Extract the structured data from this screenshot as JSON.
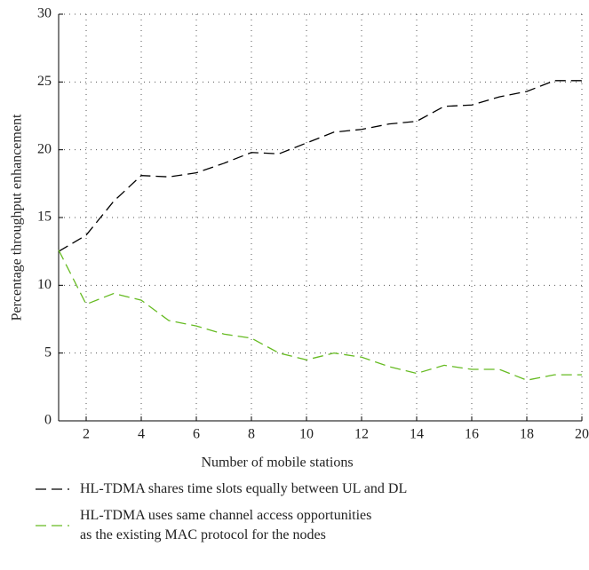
{
  "chart_data": {
    "type": "line",
    "x_label": "Number of mobile stations",
    "y_label": "Percentage throughput enhancement",
    "x": [
      1,
      2,
      3,
      4,
      5,
      6,
      7,
      8,
      9,
      10,
      11,
      12,
      13,
      14,
      15,
      16,
      17,
      18,
      19,
      20
    ],
    "series": [
      {
        "name": "HL-TDMA shares time slots equally between UL and DL",
        "color": "#000000",
        "values": [
          12.5,
          13.7,
          16.2,
          18.1,
          18.0,
          18.3,
          19.0,
          19.8,
          19.7,
          20.5,
          21.3,
          21.5,
          21.9,
          22.1,
          23.2,
          23.3,
          23.9,
          24.3,
          25.1,
          25.1
        ]
      },
      {
        "name": "HL-TDMA uses same channel access opportunities\nas the existing MAC protocol for the nodes",
        "color": "#66bb22",
        "values": [
          12.6,
          8.6,
          9.4,
          8.9,
          7.4,
          7.0,
          6.4,
          6.1,
          5.0,
          4.5,
          5.0,
          4.7,
          4.0,
          3.5,
          4.1,
          3.8,
          3.8,
          3.0,
          3.4,
          3.4
        ]
      }
    ],
    "xlim": [
      1,
      20
    ],
    "xticks": [
      2,
      4,
      6,
      8,
      10,
      12,
      14,
      16,
      18,
      20
    ],
    "ylim": [
      0,
      30
    ],
    "yticks": [
      0,
      5,
      10,
      15,
      20,
      25,
      30
    ],
    "grid": true,
    "line_style": "dashed"
  }
}
